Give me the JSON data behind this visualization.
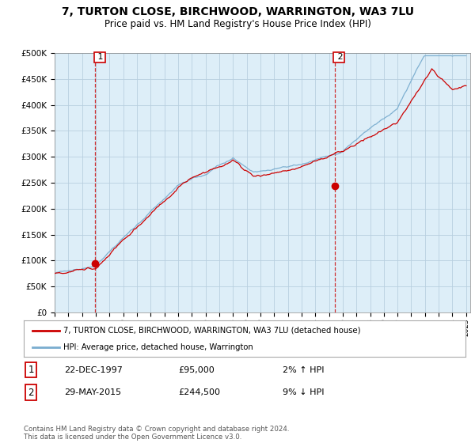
{
  "title": "7, TURTON CLOSE, BIRCHWOOD, WARRINGTON, WA3 7LU",
  "subtitle": "Price paid vs. HM Land Registry's House Price Index (HPI)",
  "ylim": [
    0,
    500000
  ],
  "yticks": [
    0,
    50000,
    100000,
    150000,
    200000,
    250000,
    300000,
    350000,
    400000,
    450000,
    500000
  ],
  "ytick_labels": [
    "£0",
    "£50K",
    "£100K",
    "£150K",
    "£200K",
    "£250K",
    "£300K",
    "£350K",
    "£400K",
    "£450K",
    "£500K"
  ],
  "xtick_years": [
    1995,
    1996,
    1997,
    1998,
    1999,
    2000,
    2001,
    2002,
    2003,
    2004,
    2005,
    2006,
    2007,
    2008,
    2009,
    2010,
    2011,
    2012,
    2013,
    2014,
    2015,
    2016,
    2017,
    2018,
    2019,
    2020,
    2021,
    2022,
    2023,
    2024,
    2025
  ],
  "house_color": "#cc0000",
  "hpi_color": "#7aadcf",
  "marker_color": "#cc0000",
  "vline_color": "#cc0000",
  "chart_bg": "#ddeef8",
  "background_color": "#ffffff",
  "grid_color": "#b8cfe0",
  "legend1": "7, TURTON CLOSE, BIRCHWOOD, WARRINGTON, WA3 7LU (detached house)",
  "legend2": "HPI: Average price, detached house, Warrington",
  "annotation1_date": "22-DEC-1997",
  "annotation1_price": "£95,000",
  "annotation1_hpi": "2% ↑ HPI",
  "annotation2_date": "29-MAY-2015",
  "annotation2_price": "£244,500",
  "annotation2_hpi": "9% ↓ HPI",
  "footer": "Contains HM Land Registry data © Crown copyright and database right 2024.\nThis data is licensed under the Open Government Licence v3.0.",
  "sale1_year": 1997.97,
  "sale1_price": 95000,
  "sale2_year": 2015.41,
  "sale2_price": 244500,
  "title_fontsize": 10,
  "subtitle_fontsize": 8.5
}
